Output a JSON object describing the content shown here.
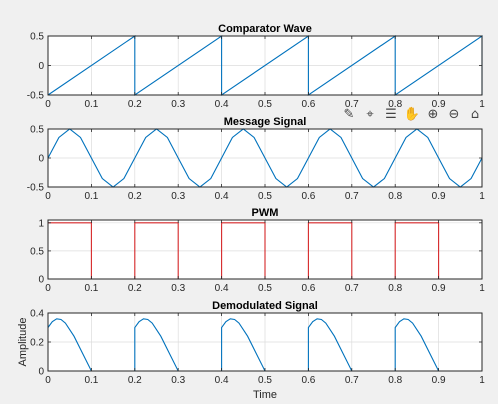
{
  "chart_data": [
    {
      "type": "line",
      "title": "Comparator Wave",
      "xlabel": "",
      "ylabel": "",
      "xlim": [
        0,
        1
      ],
      "ylim": [
        -0.5,
        0.5
      ],
      "xticks": [
        0,
        0.1,
        0.2,
        0.3,
        0.4,
        0.5,
        0.6,
        0.7,
        0.8,
        0.9,
        1
      ],
      "xtick_labels": [
        "0",
        "0.1",
        "0.2",
        "0.3",
        "0.4",
        "0.5",
        "0.6",
        "0.7",
        "0.8",
        "0.9",
        "1"
      ],
      "yticks": [
        -0.5,
        0,
        0.5
      ],
      "ytick_labels": [
        "-0.5",
        "0",
        "0.5"
      ],
      "grid": true,
      "series": [
        {
          "color": "#0072bd",
          "x": [
            0,
            0.2,
            0.2,
            0.4,
            0.4,
            0.6,
            0.6,
            0.8,
            0.8,
            1.0,
            1.0
          ],
          "y": [
            -0.5,
            0.5,
            -0.5,
            0.5,
            -0.5,
            0.5,
            -0.5,
            0.5,
            -0.5,
            0.5,
            -0.5
          ]
        }
      ]
    },
    {
      "type": "line",
      "title": "Message Signal",
      "xlabel": "",
      "ylabel": "",
      "xlim": [
        0,
        1
      ],
      "ylim": [
        -0.5,
        0.5
      ],
      "xticks": [
        0,
        0.1,
        0.2,
        0.3,
        0.4,
        0.5,
        0.6,
        0.7,
        0.8,
        0.9,
        1
      ],
      "xtick_labels": [
        "0",
        "0.1",
        "0.2",
        "0.3",
        "0.4",
        "0.5",
        "0.6",
        "0.7",
        "0.8",
        "0.9",
        "1"
      ],
      "yticks": [
        -0.5,
        0,
        0.5
      ],
      "ytick_labels": [
        "-0.5",
        "0",
        "0.5"
      ],
      "grid": true,
      "series": [
        {
          "color": "#0072bd",
          "x": [
            0,
            0.025,
            0.05,
            0.075,
            0.1,
            0.125,
            0.15,
            0.175,
            0.2,
            0.225,
            0.25,
            0.275,
            0.3,
            0.325,
            0.35,
            0.375,
            0.4,
            0.425,
            0.45,
            0.475,
            0.5,
            0.525,
            0.55,
            0.575,
            0.6,
            0.625,
            0.65,
            0.675,
            0.7,
            0.725,
            0.75,
            0.775,
            0.8,
            0.825,
            0.85,
            0.875,
            0.9,
            0.925,
            0.95,
            0.975,
            1.0
          ],
          "y": [
            0,
            0.354,
            0.5,
            0.354,
            0,
            -0.354,
            -0.5,
            -0.354,
            0,
            0.354,
            0.5,
            0.354,
            0,
            -0.354,
            -0.5,
            -0.354,
            0,
            0.354,
            0.5,
            0.354,
            0,
            -0.354,
            -0.5,
            -0.354,
            0,
            0.354,
            0.5,
            0.354,
            0,
            -0.354,
            -0.5,
            -0.354,
            0,
            0.354,
            0.5,
            0.354,
            0,
            -0.354,
            -0.5,
            -0.354,
            0
          ]
        }
      ]
    },
    {
      "type": "line",
      "title": "PWM",
      "xlabel": "",
      "ylabel": "",
      "xlim": [
        0,
        1
      ],
      "ylim": [
        0,
        1.05
      ],
      "xticks": [
        0,
        0.1,
        0.2,
        0.3,
        0.4,
        0.5,
        0.6,
        0.7,
        0.8,
        0.9,
        1
      ],
      "xtick_labels": [
        "0",
        "0.1",
        "0.2",
        "0.3",
        "0.4",
        "0.5",
        "0.6",
        "0.7",
        "0.8",
        "0.9",
        "1"
      ],
      "yticks": [
        0,
        0.5,
        1
      ],
      "ytick_labels": [
        "0",
        "0.5",
        "1"
      ],
      "grid": true,
      "series": [
        {
          "color": "#d62728",
          "x": [
            0,
            0.1,
            0.1,
            0.2,
            0.2,
            0.3,
            0.3,
            0.4,
            0.4,
            0.5,
            0.5,
            0.6,
            0.6,
            0.7,
            0.7,
            0.8,
            0.8,
            0.9,
            0.9,
            1.0
          ],
          "y": [
            1,
            1,
            0,
            0,
            1,
            1,
            0,
            0,
            1,
            1,
            0,
            0,
            1,
            1,
            0,
            0,
            1,
            1,
            0,
            0
          ]
        }
      ]
    },
    {
      "type": "line",
      "title": "Demodulated Signal",
      "xlabel": "Time",
      "ylabel": "Amplitude",
      "xlim": [
        0,
        1
      ],
      "ylim": [
        0,
        0.4
      ],
      "xticks": [
        0,
        0.1,
        0.2,
        0.3,
        0.4,
        0.5,
        0.6,
        0.7,
        0.8,
        0.9,
        1
      ],
      "xtick_labels": [
        "0",
        "0.1",
        "0.2",
        "0.3",
        "0.4",
        "0.5",
        "0.6",
        "0.7",
        "0.8",
        "0.9",
        "1"
      ],
      "yticks": [
        0,
        0.2,
        0.4
      ],
      "ytick_labels": [
        "0",
        "0.2",
        "0.4"
      ],
      "grid": true,
      "series": [
        {
          "color": "#0072bd",
          "x": [
            0,
            0.01,
            0.02,
            0.03,
            0.04,
            0.06,
            0.08,
            0.1,
            0.2,
            0.2,
            0.21,
            0.22,
            0.23,
            0.24,
            0.26,
            0.28,
            0.3,
            0.4,
            0.4,
            0.41,
            0.42,
            0.43,
            0.44,
            0.46,
            0.48,
            0.5,
            0.6,
            0.6,
            0.61,
            0.62,
            0.63,
            0.64,
            0.66,
            0.68,
            0.7,
            0.8,
            0.8,
            0.81,
            0.82,
            0.83,
            0.84,
            0.86,
            0.88,
            0.9,
            1.0
          ],
          "y": [
            0.3,
            0.34,
            0.36,
            0.355,
            0.33,
            0.24,
            0.12,
            0,
            0,
            0.3,
            0.34,
            0.36,
            0.355,
            0.33,
            0.24,
            0.12,
            0,
            0,
            0.3,
            0.34,
            0.36,
            0.355,
            0.33,
            0.24,
            0.12,
            0,
            0,
            0.3,
            0.34,
            0.36,
            0.355,
            0.33,
            0.24,
            0.12,
            0,
            0,
            0.3,
            0.34,
            0.36,
            0.355,
            0.33,
            0.24,
            0.12,
            0,
            0
          ]
        }
      ]
    }
  ],
  "toolbar": {
    "icons": [
      {
        "name": "brush-icon",
        "glyph": "✎"
      },
      {
        "name": "data-tips-icon",
        "glyph": "⌖"
      },
      {
        "name": "legend-icon",
        "glyph": "☰"
      },
      {
        "name": "pan-hand-icon",
        "glyph": "✋"
      },
      {
        "name": "zoom-in-icon",
        "glyph": "⊕"
      },
      {
        "name": "zoom-out-icon",
        "glyph": "⊖"
      },
      {
        "name": "home-icon",
        "glyph": "⌂"
      }
    ]
  }
}
